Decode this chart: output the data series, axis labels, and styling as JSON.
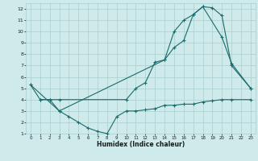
{
  "bg_color": "#ceeaea",
  "grid_color": "#aacece",
  "line_color": "#1a6b6b",
  "xlabel": "Humidex (Indice chaleur)",
  "xlim": [
    -0.5,
    23.5
  ],
  "ylim": [
    1,
    12.5
  ],
  "xticks": [
    0,
    1,
    2,
    3,
    4,
    5,
    6,
    7,
    8,
    9,
    10,
    11,
    12,
    13,
    14,
    15,
    16,
    17,
    18,
    19,
    20,
    21,
    22,
    23
  ],
  "yticks": [
    1,
    2,
    3,
    4,
    5,
    6,
    7,
    8,
    9,
    10,
    11,
    12
  ],
  "line1_x": [
    0,
    1,
    2,
    3,
    10,
    11,
    12,
    13,
    14,
    15,
    16,
    17,
    18,
    19,
    20,
    21,
    23
  ],
  "line1_y": [
    5.3,
    4.0,
    4.0,
    4.0,
    4.0,
    5.0,
    5.5,
    7.3,
    7.5,
    8.6,
    9.2,
    11.5,
    12.2,
    12.1,
    11.4,
    7.0,
    5.0
  ],
  "line2_x": [
    0,
    3,
    14,
    15,
    16,
    17,
    18,
    20,
    21,
    23
  ],
  "line2_y": [
    5.3,
    3.0,
    7.5,
    10.0,
    11.0,
    11.5,
    12.2,
    9.5,
    7.2,
    5.0
  ],
  "line3_x": [
    1,
    2,
    3,
    4,
    5,
    6,
    7,
    8,
    9,
    10,
    11,
    12,
    13,
    14,
    15,
    16,
    17,
    18,
    19,
    20,
    21,
    23
  ],
  "line3_y": [
    4.0,
    4.0,
    3.0,
    2.5,
    2.0,
    1.5,
    1.2,
    1.0,
    2.5,
    3.0,
    3.0,
    3.1,
    3.2,
    3.5,
    3.5,
    3.6,
    3.6,
    3.8,
    3.9,
    4.0,
    4.0,
    4.0
  ]
}
